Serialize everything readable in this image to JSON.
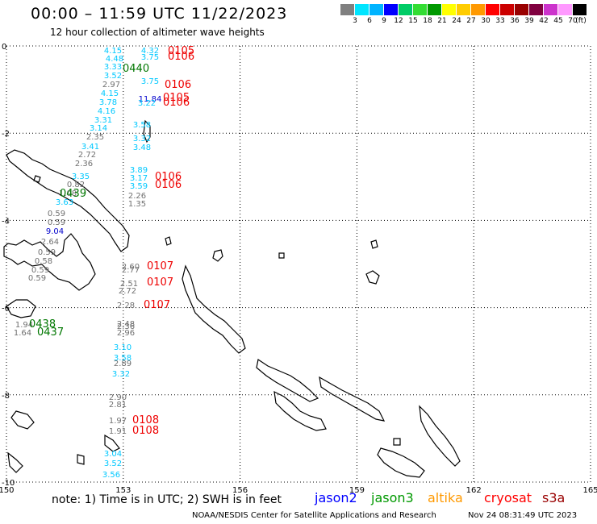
{
  "header": {
    "title": "00:00 – 11:59 UTC 11/22/2023",
    "subtitle": "12 hour collection of altimeter wave heights"
  },
  "colorbar": {
    "colors": [
      "#808080",
      "#00e5ff",
      "#00b4ff",
      "#0000ff",
      "#00cc66",
      "#33dd33",
      "#009900",
      "#ffff00",
      "#ffcc00",
      "#ff9900",
      "#ff0000",
      "#cc0000",
      "#990000",
      "#800040",
      "#cc33cc",
      "#ff99ff",
      "#000000"
    ],
    "labels": [
      "3",
      "6",
      "9",
      "12",
      "15",
      "18",
      "21",
      "24",
      "27",
      "30",
      "33",
      "36",
      "39",
      "42",
      "45",
      "70"
    ],
    "unit": "(ft)"
  },
  "axes": {
    "x_ticks": [
      "150",
      "153",
      "156",
      "159",
      "162",
      "165"
    ],
    "y_ticks": [
      "0",
      "-2",
      "-4",
      "-6",
      "-8",
      "-10"
    ],
    "grid": true
  },
  "measurements": [
    {
      "v": "4.15",
      "c": "cyan"
    },
    {
      "v": "4.48",
      "c": "cyan"
    },
    {
      "v": "3.33",
      "c": "cyan"
    },
    {
      "v": "3.52",
      "c": "cyan"
    },
    {
      "v": "2.97",
      "c": "gray"
    },
    {
      "v": "4.15",
      "c": "cyan"
    },
    {
      "v": "3.78",
      "c": "cyan"
    },
    {
      "v": "4.16",
      "c": "cyan"
    },
    {
      "v": "3.31",
      "c": "cyan"
    },
    {
      "v": "3.14",
      "c": "cyan"
    },
    {
      "v": "2.35",
      "c": "gray"
    },
    {
      "v": "3.41",
      "c": "cyan"
    },
    {
      "v": "2.72",
      "c": "gray"
    },
    {
      "v": "2.36",
      "c": "gray"
    },
    {
      "v": "3.35",
      "c": "cyan"
    },
    {
      "v": "0.82",
      "c": "gray"
    },
    {
      "v": "1.08",
      "c": "gray"
    },
    {
      "v": "3.63",
      "c": "cyan"
    },
    {
      "v": "0.59",
      "c": "gray"
    },
    {
      "v": "0.59",
      "c": "gray"
    },
    {
      "v": "9.04",
      "c": "blue"
    },
    {
      "v": "2.64",
      "c": "gray"
    },
    {
      "v": "0.59",
      "c": "gray"
    },
    {
      "v": "0.58",
      "c": "gray"
    },
    {
      "v": "0.59",
      "c": "gray"
    },
    {
      "v": "0.59",
      "c": "gray"
    },
    {
      "v": "1.94",
      "c": "gray"
    },
    {
      "v": "1.64",
      "c": "gray"
    },
    {
      "v": "4.32",
      "c": "cyan"
    },
    {
      "v": "3.75",
      "c": "cyan"
    },
    {
      "v": "3.75",
      "c": "cyan"
    },
    {
      "v": "11.84",
      "c": "blue"
    },
    {
      "v": "3.22",
      "c": "cyan"
    },
    {
      "v": "3.58",
      "c": "cyan"
    },
    {
      "v": "3.32",
      "c": "cyan"
    },
    {
      "v": "3.48",
      "c": "cyan"
    },
    {
      "v": "3.89",
      "c": "cyan"
    },
    {
      "v": "3.17",
      "c": "cyan"
    },
    {
      "v": "3.59",
      "c": "cyan"
    },
    {
      "v": "2.26",
      "c": "gray"
    },
    {
      "v": "1.35",
      "c": "gray"
    },
    {
      "v": "2.60",
      "c": "gray"
    },
    {
      "v": "2.77",
      "c": "gray"
    },
    {
      "v": "2.51",
      "c": "gray"
    },
    {
      "v": "2.72",
      "c": "gray"
    },
    {
      "v": "2.28",
      "c": "gray"
    },
    {
      "v": "2.48",
      "c": "gray"
    },
    {
      "v": "2.36",
      "c": "gray"
    },
    {
      "v": "2.96",
      "c": "gray"
    },
    {
      "v": "3.10",
      "c": "cyan"
    },
    {
      "v": "3.58",
      "c": "cyan"
    },
    {
      "v": "2.89",
      "c": "gray"
    },
    {
      "v": "3.32",
      "c": "cyan"
    },
    {
      "v": "2.90",
      "c": "gray"
    },
    {
      "v": "2.81",
      "c": "gray"
    },
    {
      "v": "1.97",
      "c": "gray"
    },
    {
      "v": "1.91",
      "c": "gray"
    },
    {
      "v": "3.04",
      "c": "cyan"
    },
    {
      "v": "3.52",
      "c": "cyan"
    },
    {
      "v": "3.56",
      "c": "cyan"
    }
  ],
  "time_labels": [
    {
      "t": "0105",
      "c": "red"
    },
    {
      "t": "0106",
      "c": "red"
    },
    {
      "t": "0440",
      "c": "green"
    },
    {
      "t": "0106",
      "c": "red"
    },
    {
      "t": "0105",
      "c": "red"
    },
    {
      "t": "0106",
      "c": "red"
    },
    {
      "t": "0106",
      "c": "red"
    },
    {
      "t": "0106",
      "c": "red"
    },
    {
      "t": "0439",
      "c": "green"
    },
    {
      "t": "0107",
      "c": "red"
    },
    {
      "t": "0107",
      "c": "red"
    },
    {
      "t": "0107",
      "c": "red"
    },
    {
      "t": "0438",
      "c": "green"
    },
    {
      "t": "0437",
      "c": "green"
    },
    {
      "t": "0108",
      "c": "red"
    },
    {
      "t": "0108",
      "c": "red"
    }
  ],
  "footer": {
    "note": "note:  1) Time is in UTC; 2) SWH is in feet",
    "legend": [
      {
        "name": "jason2",
        "color": "#0000ff"
      },
      {
        "name": "jason3",
        "color": "#009900"
      },
      {
        "name": "altika",
        "color": "#ff9900"
      },
      {
        "name": "cryosat",
        "color": "#ff0000"
      },
      {
        "name": "s3a",
        "color": "#990000"
      }
    ],
    "credit": "NOAA/NESDIS Center for Satellite Applications and Research",
    "timestamp": "Nov 24 08:31:49 UTC 2023"
  },
  "colors": {
    "cyan": "#00c8ff",
    "gray": "#707070",
    "blue": "#0000cc",
    "red": "#ee0000",
    "green": "#007700"
  }
}
